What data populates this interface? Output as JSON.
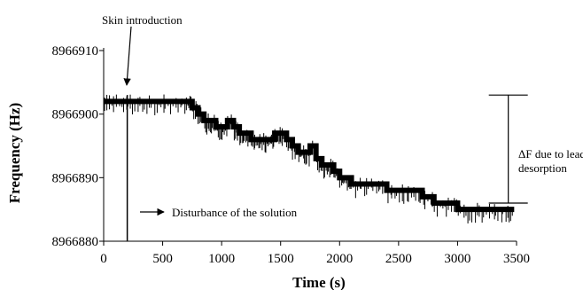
{
  "chart_data": {
    "type": "line",
    "title": "",
    "xlabel": "Time (s)",
    "ylabel": "Frequency (Hz)",
    "xlim": [
      0,
      3500
    ],
    "ylim": [
      8966880,
      8966910
    ],
    "xticks": [
      0,
      500,
      1000,
      1500,
      2000,
      2500,
      3000,
      3500
    ],
    "yticks": [
      8966880,
      8966890,
      8966900,
      8966910
    ],
    "grid": false,
    "legend": "none",
    "series": [
      {
        "name": "",
        "color": "#000000",
        "points": [
          [
            0,
            8966902
          ],
          [
            100,
            8966902
          ],
          [
            200,
            8966902
          ],
          [
            300,
            8966902
          ],
          [
            400,
            8966902
          ],
          [
            500,
            8966902
          ],
          [
            600,
            8966902
          ],
          [
            700,
            8966902
          ],
          [
            750,
            8966901
          ],
          [
            800,
            8966900
          ],
          [
            850,
            8966899
          ],
          [
            900,
            8966899
          ],
          [
            950,
            8966898
          ],
          [
            1000,
            8966898
          ],
          [
            1050,
            8966899
          ],
          [
            1100,
            8966898
          ],
          [
            1150,
            8966897
          ],
          [
            1200,
            8966897
          ],
          [
            1250,
            8966896
          ],
          [
            1300,
            8966896
          ],
          [
            1350,
            8966896
          ],
          [
            1400,
            8966896
          ],
          [
            1450,
            8966897
          ],
          [
            1500,
            8966897
          ],
          [
            1550,
            8966896
          ],
          [
            1600,
            8966895
          ],
          [
            1650,
            8966894
          ],
          [
            1700,
            8966894
          ],
          [
            1750,
            8966895
          ],
          [
            1800,
            8966893
          ],
          [
            1850,
            8966892
          ],
          [
            1900,
            8966892
          ],
          [
            1950,
            8966891
          ],
          [
            2000,
            8966890
          ],
          [
            2050,
            8966890
          ],
          [
            2100,
            8966889
          ],
          [
            2200,
            8966889
          ],
          [
            2300,
            8966889
          ],
          [
            2400,
            8966888
          ],
          [
            2500,
            8966888
          ],
          [
            2600,
            8966888
          ],
          [
            2700,
            8966887
          ],
          [
            2800,
            8966886
          ],
          [
            2900,
            8966886
          ],
          [
            3000,
            8966885
          ],
          [
            3100,
            8966885
          ],
          [
            3200,
            8966885
          ],
          [
            3300,
            8966885
          ],
          [
            3400,
            8966885
          ],
          [
            3480,
            8966885
          ]
        ],
        "spike": {
          "x": 200,
          "low": 8966880,
          "high": 8966903
        }
      }
    ],
    "delta_bracket": {
      "x": 3430,
      "top": 8966903,
      "bottom": 8966886
    },
    "annotations": [
      {
        "text": "Skin introduction",
        "kind": "skin"
      },
      {
        "text": "Disturbance of the solution",
        "kind": "disturbance"
      },
      {
        "text": "ΔF due to lead",
        "kind": "delta1"
      },
      {
        "text": "desorption",
        "kind": "delta2"
      }
    ]
  }
}
